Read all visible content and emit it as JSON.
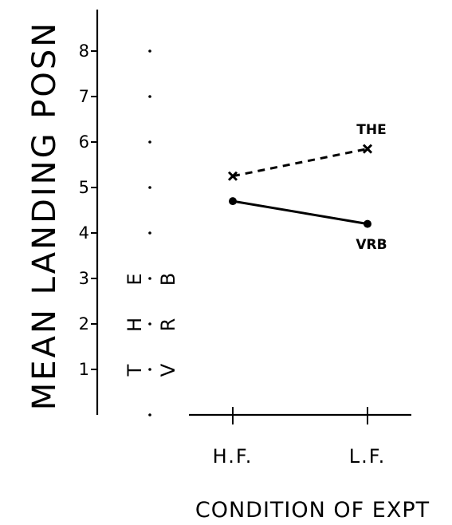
{
  "chart_data": {
    "type": "line",
    "title": "",
    "xlabel": "CONDITION OF EXPT",
    "ylabel": "MEAN LANDING POSN",
    "categories": [
      "H.F.",
      "L.F."
    ],
    "ylim": [
      0,
      8
    ],
    "yticks": [
      "1",
      "2",
      "3",
      "4",
      "5",
      "6",
      "7",
      "8"
    ],
    "grid": false,
    "series": [
      {
        "name": "THE",
        "values": [
          5.25,
          5.85
        ],
        "style": "dashed",
        "marker": "x"
      },
      {
        "name": "VRB",
        "values": [
          4.7,
          4.2
        ],
        "style": "solid",
        "marker": "dot"
      }
    ],
    "annotations": {
      "stacked_left": [
        "THE",
        "VRB"
      ]
    },
    "colors": {
      "ink": "#000000",
      "background": "#ffffff"
    }
  }
}
